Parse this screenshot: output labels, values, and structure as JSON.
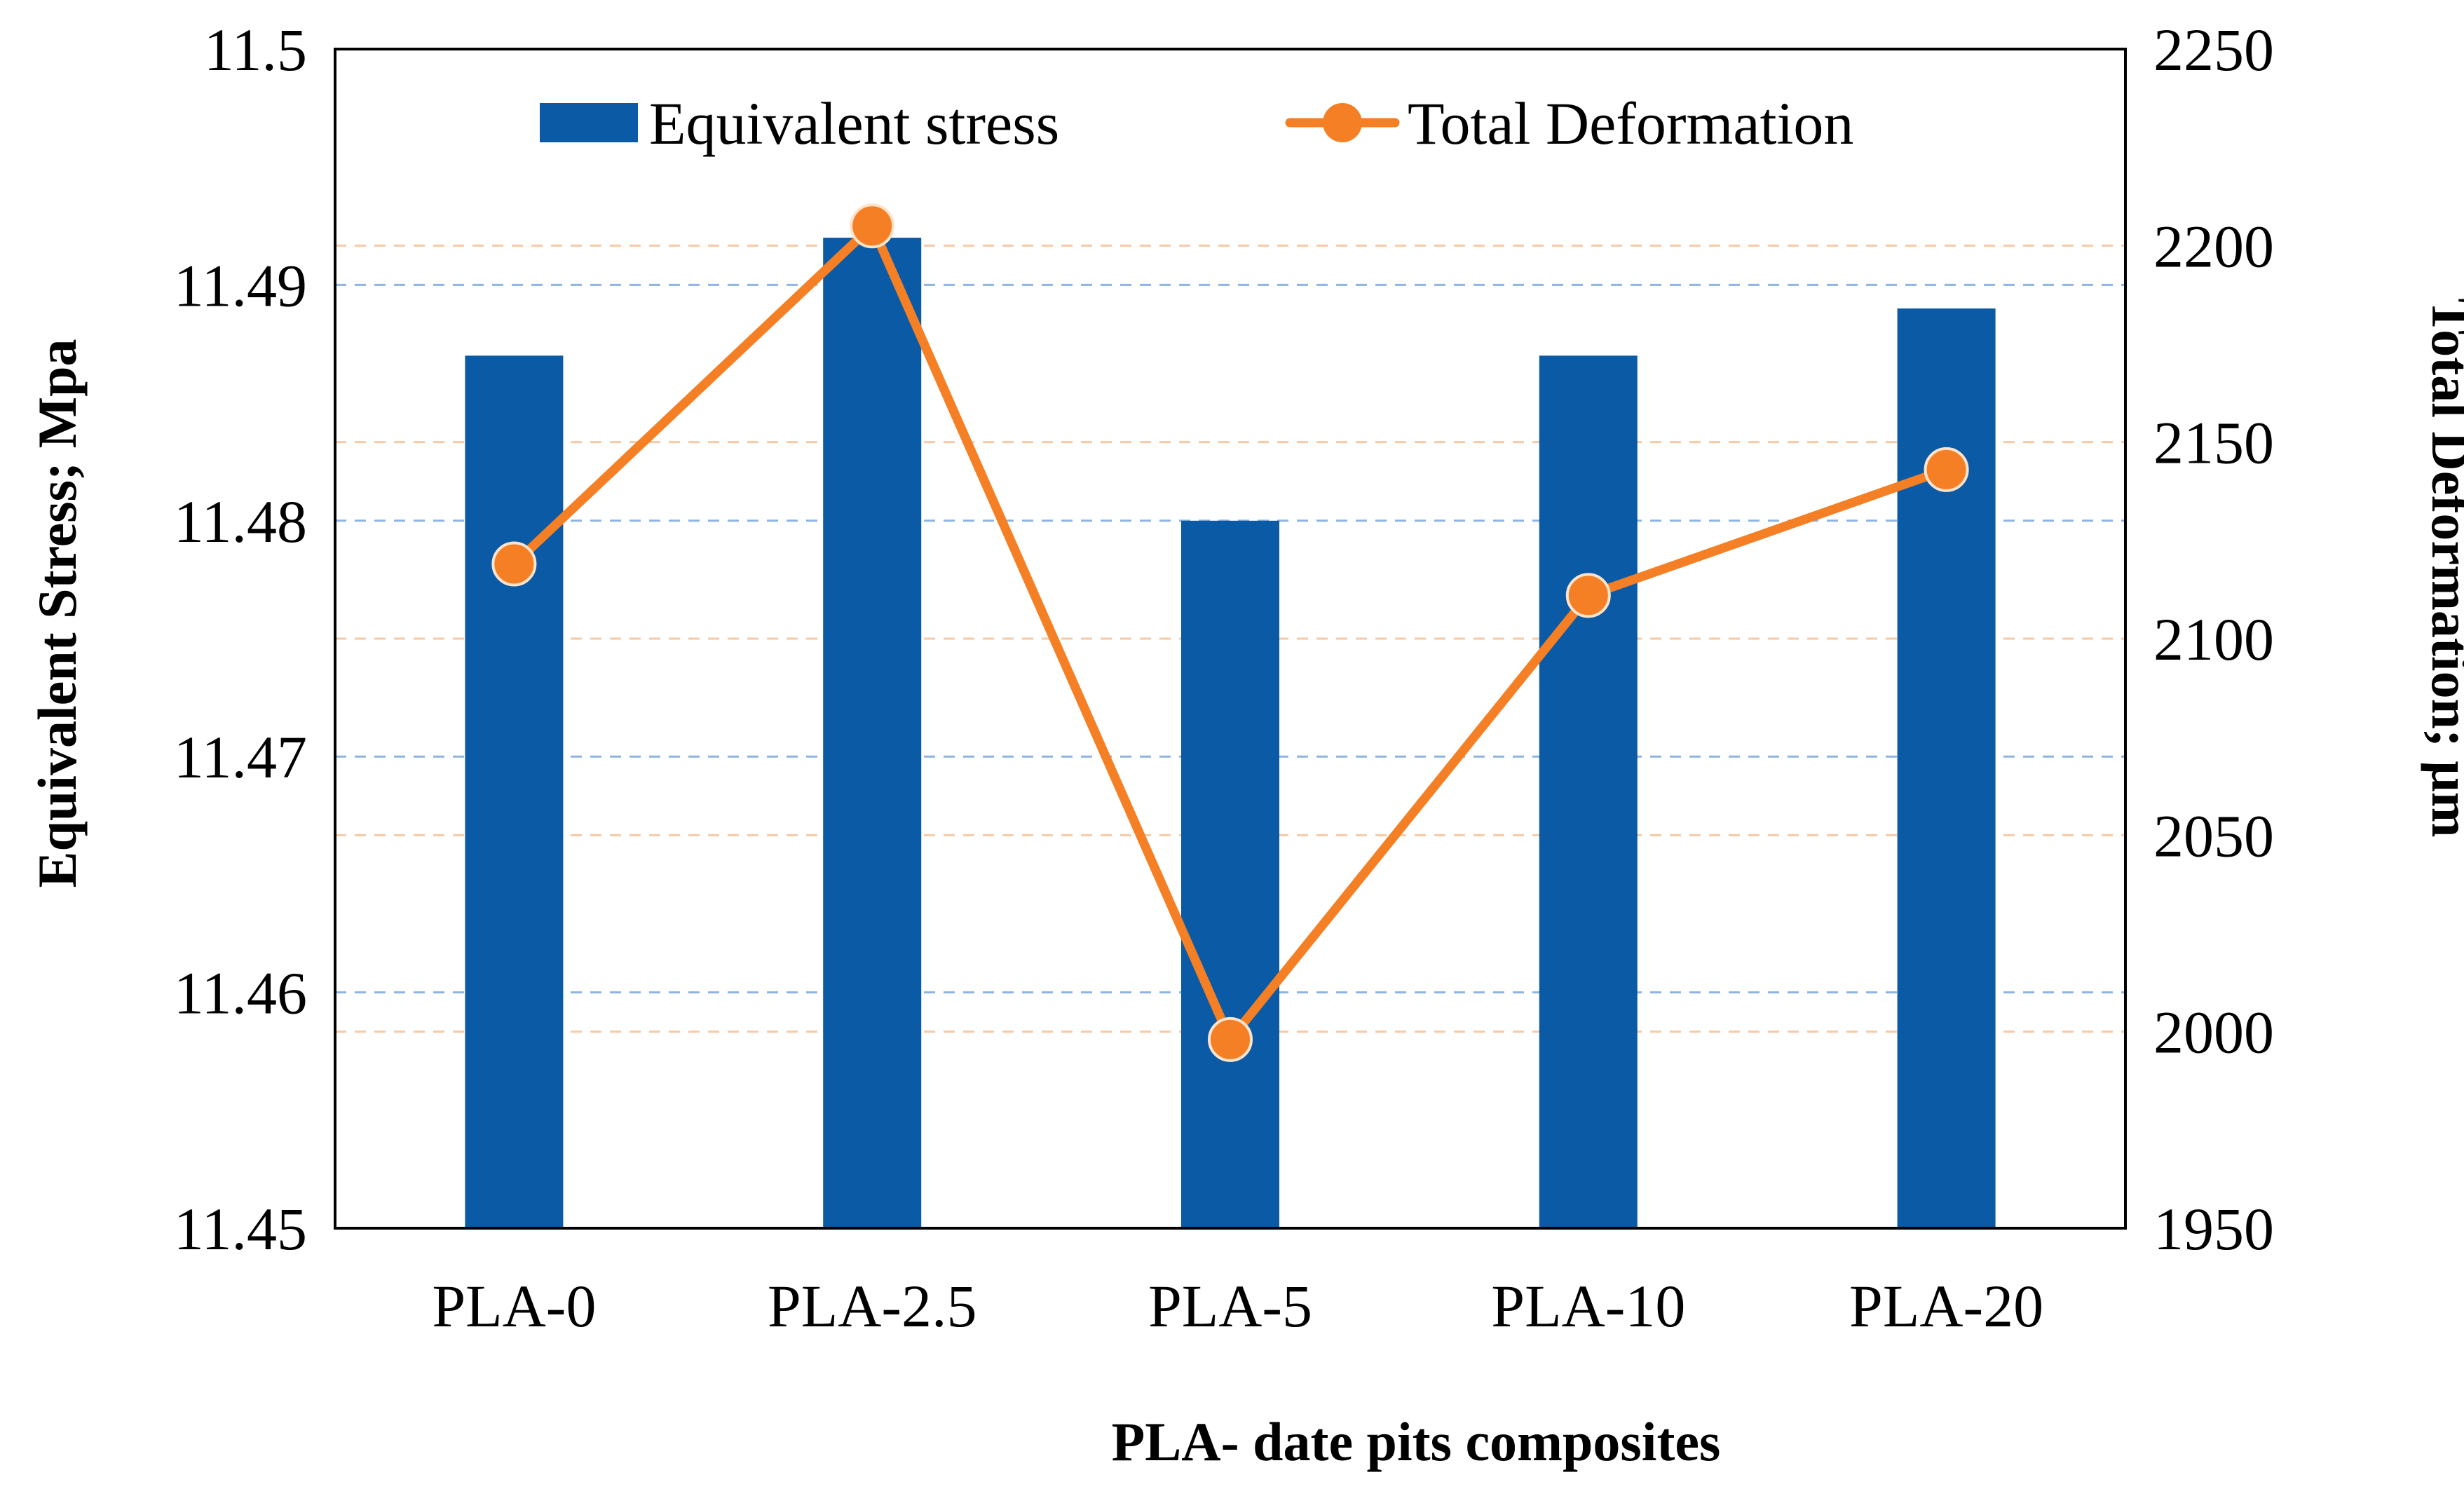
{
  "chart_data": {
    "type": "bar+line",
    "title": "",
    "categories": [
      "PLA-0",
      "PLA-2.5",
      "PLA-5",
      "PLA-10",
      "PLA-20"
    ],
    "series": [
      {
        "name": "Equivalent stress",
        "kind": "bar",
        "axis": "left",
        "color": "#0a5aa6",
        "values": [
          11.487,
          11.492,
          11.48,
          11.487,
          11.489
        ]
      },
      {
        "name": "Total Deformation",
        "kind": "line",
        "axis": "right",
        "color": "#f47f24",
        "values": [
          2119,
          2205,
          1998,
          2111,
          2143
        ]
      }
    ],
    "xlabel": "PLA- date pits composites",
    "ylabel": "Equivalent Stress; Mpa",
    "y2label": "Total Deformation; μm",
    "ylim": [
      11.45,
      11.5
    ],
    "y2lim": [
      1950,
      2250
    ],
    "yticks": [
      "11.45",
      "11.46",
      "11.47",
      "11.48",
      "11.49",
      "11.5"
    ],
    "y2ticks": [
      "1950",
      "2000",
      "2050",
      "2100",
      "2150",
      "2200",
      "2250"
    ],
    "grid": true,
    "legend": "top-center"
  }
}
